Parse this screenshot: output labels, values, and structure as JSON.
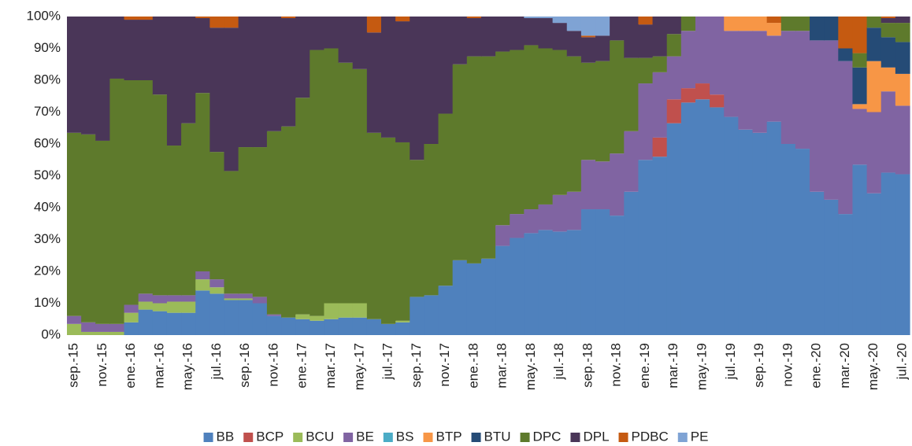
{
  "chart_data": {
    "type": "stacked_step_area",
    "categories": [
      "sep.-15",
      null,
      "nov.-15",
      null,
      "ene.-16",
      null,
      "mar.-16",
      null,
      "may.-16",
      null,
      "jul.-16",
      null,
      "sep.-16",
      null,
      "nov.-16",
      null,
      "ene.-17",
      null,
      "mar.-17",
      null,
      "may.-17",
      null,
      "jul.-17",
      null,
      "sep.-17",
      null,
      "nov.-17",
      null,
      "ene.-18",
      null,
      "mar.-18",
      null,
      "may.-18",
      null,
      "jul.-18",
      null,
      "sep.-18",
      null,
      "nov.-18",
      null,
      "ene.-19",
      null,
      "mar.-19",
      null,
      "may.-19",
      null,
      "jul.-19",
      null,
      "sep.-19",
      null,
      "nov.-19",
      null,
      "ene.-20",
      null,
      "mar.-20",
      null,
      "may.-20",
      null,
      "jul.-20"
    ],
    "series": [
      {
        "name": "BB",
        "color": "#4f81bd",
        "values": [
          0,
          0,
          0,
          0,
          4,
          8,
          7.5,
          7,
          7,
          14,
          13,
          11,
          11,
          10,
          6,
          5.5,
          5,
          4.5,
          5,
          5.5,
          5.5,
          5,
          3.5,
          4,
          12,
          12.5,
          15.5,
          23.5,
          22.5,
          24,
          28,
          30.5,
          32,
          33,
          32.5,
          33,
          39.5,
          39.5,
          37.5,
          45,
          55,
          56,
          66.5,
          73,
          74,
          71.5,
          68.5,
          64.5,
          63.5,
          67,
          60,
          58.5,
          45,
          42.5,
          38,
          53.5,
          44.5,
          51,
          50.5
        ]
      },
      {
        "name": "BCP",
        "color": "#c0504d",
        "values": [
          0,
          0,
          0,
          0,
          0,
          0,
          0,
          0,
          0,
          0,
          0,
          0,
          0,
          0,
          0,
          0,
          0,
          0,
          0,
          0,
          0,
          0,
          0,
          0,
          0,
          0,
          0,
          0,
          0,
          0,
          0,
          0,
          0,
          0,
          0,
          0,
          0,
          0,
          0,
          0,
          0,
          6,
          7.5,
          4.5,
          5,
          4,
          0,
          0,
          0,
          0,
          0,
          0,
          0,
          0,
          0,
          0,
          0,
          0,
          0
        ]
      },
      {
        "name": "BCU",
        "color": "#9bbb59",
        "values": [
          3.5,
          1,
          1,
          1,
          3,
          2.5,
          2.5,
          3.5,
          3.5,
          3.5,
          2,
          0.5,
          0.5,
          0,
          0,
          0,
          1.5,
          1.5,
          5,
          4.5,
          4.5,
          0,
          0,
          0.5,
          0,
          0,
          0,
          0,
          0,
          0,
          0,
          0,
          0,
          0,
          0,
          0,
          0,
          0,
          0,
          0,
          0,
          0,
          0,
          0,
          0,
          0,
          0,
          0,
          0,
          0,
          0,
          0,
          0,
          0,
          0,
          0,
          0,
          0,
          0
        ]
      },
      {
        "name": "BE",
        "color": "#8064a2",
        "values": [
          2.5,
          3,
          2.5,
          2.5,
          2.5,
          2.5,
          2.5,
          2,
          2,
          2.5,
          2.5,
          1.5,
          1.5,
          2,
          0.5,
          0,
          0,
          0,
          0,
          0,
          0,
          0,
          0,
          0,
          0,
          0,
          0,
          0,
          0,
          0,
          6.5,
          7.5,
          7.5,
          8,
          11.5,
          12,
          15.5,
          15,
          19.5,
          19,
          24,
          20.5,
          13.5,
          18,
          21,
          24.5,
          27,
          31,
          32,
          27,
          35.5,
          37,
          47.5,
          50,
          48,
          17.5,
          25.5,
          25.5,
          21.5
        ]
      },
      {
        "name": "BS",
        "color": "#4bacc6",
        "values": [
          0,
          0,
          0,
          0,
          0,
          0,
          0,
          0,
          0,
          0,
          0,
          0,
          0,
          0,
          0,
          0,
          0,
          0,
          0,
          0,
          0,
          0,
          0,
          0,
          0,
          0,
          0,
          0,
          0,
          0,
          0,
          0,
          0,
          0,
          0,
          0,
          0,
          0,
          0,
          0,
          0,
          0,
          0,
          0,
          0,
          0,
          0,
          0,
          0,
          0,
          0,
          0,
          0,
          0,
          0,
          0,
          0,
          0,
          0
        ]
      },
      {
        "name": "BTP",
        "color": "#f79646",
        "values": [
          0,
          0,
          0,
          0,
          0,
          0,
          0,
          0,
          0,
          0,
          0,
          0,
          0,
          0,
          0,
          0,
          0,
          0,
          0,
          0,
          0,
          0,
          0,
          0,
          0,
          0,
          0,
          0,
          0,
          0,
          0,
          0,
          0,
          0,
          0,
          0,
          0,
          0,
          0,
          0,
          0,
          0,
          0,
          0,
          0,
          0,
          4.5,
          4.5,
          4.5,
          4,
          0,
          0,
          0,
          0,
          0,
          1.5,
          16,
          7.5,
          10
        ]
      },
      {
        "name": "BTU",
        "color": "#254b76",
        "values": [
          0,
          0,
          0,
          0,
          0,
          0,
          0,
          0,
          0,
          0,
          0,
          0,
          0,
          0,
          0,
          0,
          0,
          0,
          0,
          0,
          0,
          0,
          0,
          0,
          0,
          0,
          0,
          0,
          0,
          0,
          0,
          0,
          0,
          0,
          0,
          0,
          0,
          0,
          0,
          0,
          0,
          0,
          0,
          0,
          0,
          0,
          0,
          0,
          0,
          0,
          0,
          0,
          7.5,
          7.5,
          4,
          11.5,
          10.5,
          9.5,
          10
        ]
      },
      {
        "name": "DPC",
        "color": "#5e7a2c",
        "values": [
          57.5,
          59,
          57.5,
          77,
          70.5,
          67,
          63,
          47,
          54,
          56,
          40,
          38.5,
          46,
          47,
          57.5,
          60,
          68,
          83.5,
          80,
          75.5,
          73.5,
          58.5,
          58.5,
          56,
          43,
          47.5,
          54,
          61.5,
          65,
          63.5,
          54.5,
          51.5,
          51.5,
          49,
          45.5,
          42.5,
          30.5,
          31.5,
          35.5,
          23,
          8,
          5,
          7,
          4.5,
          0,
          0,
          0,
          0,
          0,
          0,
          4.5,
          4.5,
          0,
          0,
          0,
          4.5,
          3.5,
          4.5,
          6
        ]
      },
      {
        "name": "DPL",
        "color": "#4a3658",
        "values": [
          36.5,
          37,
          39,
          19.5,
          19,
          19,
          24.5,
          40.5,
          33.5,
          23.5,
          39,
          45,
          41,
          41,
          36,
          34,
          25.5,
          10.5,
          10,
          14.5,
          16.5,
          31.5,
          38,
          38,
          45,
          40,
          30.5,
          15,
          12,
          12.5,
          11,
          10.5,
          8.5,
          9.5,
          8.5,
          8,
          8,
          8,
          7.5,
          13,
          10.5,
          12.5,
          5.5,
          0,
          0,
          0,
          0,
          0,
          0,
          0,
          0,
          0,
          0,
          0,
          0,
          0,
          0,
          1.5,
          2
        ]
      },
      {
        "name": "PDBC",
        "color": "#c55a11",
        "values": [
          0,
          0,
          0,
          0,
          1,
          1,
          0,
          0,
          0,
          0.5,
          3.5,
          3.5,
          0,
          0,
          0,
          0.5,
          0,
          0,
          0,
          0,
          0,
          5,
          0,
          1.5,
          0,
          0,
          0,
          0,
          0.5,
          0,
          0,
          0,
          0,
          0,
          0,
          0,
          0.5,
          0,
          0,
          0,
          2.5,
          0,
          0,
          0,
          0,
          0,
          0,
          0,
          0,
          2,
          0,
          0,
          0,
          0,
          10,
          11.5,
          0,
          0.5,
          0
        ]
      },
      {
        "name": "PE",
        "color": "#7fa3d4",
        "values": [
          0,
          0,
          0,
          0,
          0,
          0,
          0,
          0,
          0,
          0,
          0,
          0,
          0,
          0,
          0,
          0,
          0,
          0,
          0,
          0,
          0,
          0,
          0,
          0,
          0,
          0,
          0,
          0,
          0,
          0,
          0,
          0,
          0.5,
          0.5,
          2,
          4.5,
          6,
          6,
          0,
          0,
          0,
          0,
          0,
          0,
          0,
          0,
          0,
          0,
          0,
          0,
          0,
          0,
          0,
          0,
          0,
          0,
          0,
          0,
          0
        ]
      }
    ],
    "ylim": [
      0,
      100
    ],
    "yticks": [
      {
        "value": 0,
        "label": "0%"
      },
      {
        "value": 10,
        "label": "10%"
      },
      {
        "value": 20,
        "label": "20%"
      },
      {
        "value": 30,
        "label": "30%"
      },
      {
        "value": 40,
        "label": "40%"
      },
      {
        "value": 50,
        "label": "50%"
      },
      {
        "value": 60,
        "label": "60%"
      },
      {
        "value": 70,
        "label": "70%"
      },
      {
        "value": 80,
        "label": "80%"
      },
      {
        "value": 90,
        "label": "90%"
      },
      {
        "value": 100,
        "label": "100%"
      }
    ],
    "legend": "bottom"
  }
}
